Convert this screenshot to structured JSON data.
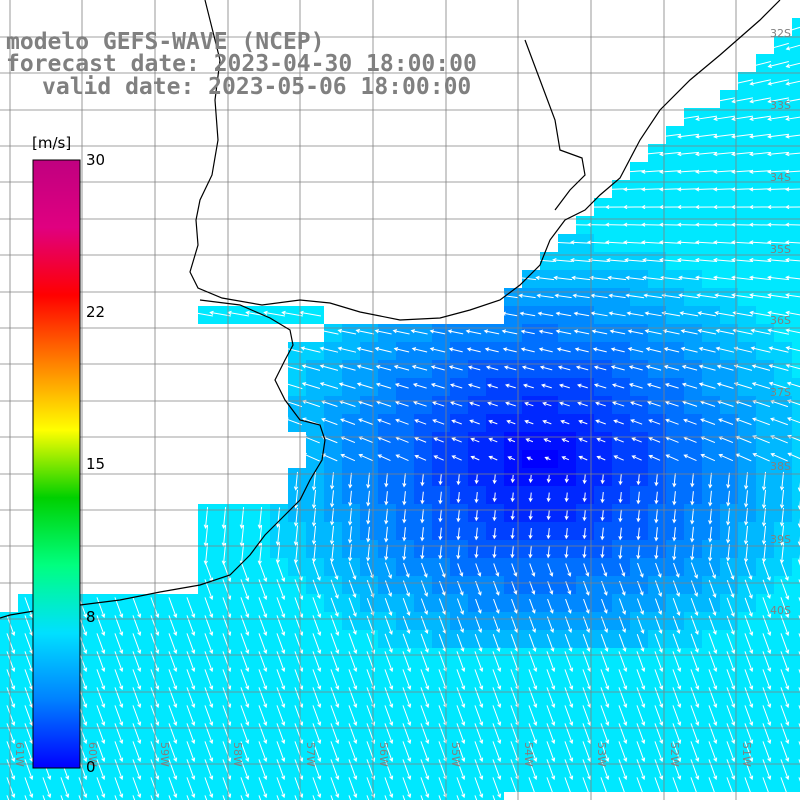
{
  "title": {
    "line1": "modelo GEFS-WAVE (NCEP)",
    "line2": "forecast date: 2023-04-30 18:00:00",
    "line3": "valid date: 2023-05-06 18:00:00"
  },
  "colorbar": {
    "units": "[m/s]",
    "ticks": [
      "30",
      "22",
      "15",
      "8",
      "0"
    ],
    "tick_values": [
      30,
      22,
      15,
      8,
      0
    ],
    "range": [
      0,
      30
    ],
    "colors": [
      "#0000ff",
      "#0080ff",
      "#00e0ff",
      "#00ff80",
      "#00d000",
      "#ffff00",
      "#ff8000",
      "#ff0000",
      "#e00080",
      "#c00080"
    ]
  },
  "lat_labels": [
    "32S",
    "33S",
    "34S",
    "35S",
    "36S",
    "37S",
    "38S",
    "39S",
    "40S"
  ],
  "lat_values": [
    32,
    33,
    34,
    35,
    36,
    37,
    38,
    39,
    40
  ],
  "lon_labels": [
    "61W",
    "60W",
    "59W",
    "58W",
    "57W",
    "56W",
    "55W",
    "54W",
    "53W",
    "52W",
    "51W"
  ],
  "lon_values": [
    61,
    60,
    59,
    58,
    57,
    56,
    55,
    54,
    53,
    52,
    51
  ],
  "colors": {
    "land": "#ffffff",
    "coastline": "#000000",
    "grid": "#808080",
    "arrows": "#ffffff",
    "title": "#808080"
  }
}
